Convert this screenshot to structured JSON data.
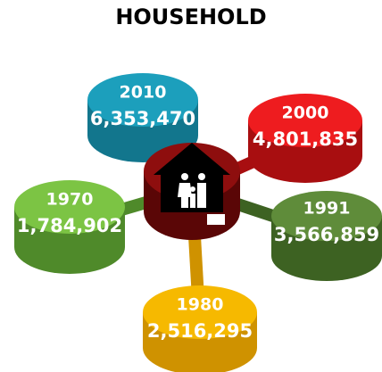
{
  "title": "HOUSEHOLD",
  "nodes": [
    {
      "year": "2010",
      "value": "6,353,470"
    },
    {
      "year": "2000",
      "value": "4,801,835"
    },
    {
      "year": "1970",
      "value": "1,784,902"
    },
    {
      "year": "1991",
      "value": "3,566,859"
    },
    {
      "year": "1980",
      "value": "2,516,295"
    }
  ]
}
